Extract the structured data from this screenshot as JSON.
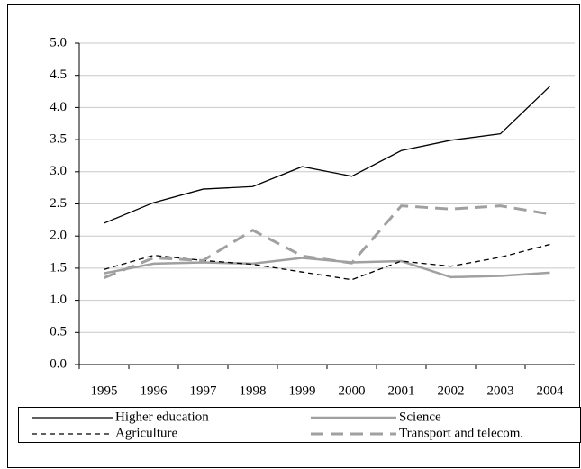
{
  "chart_data": {
    "type": "line",
    "categories": [
      "1995",
      "1996",
      "1997",
      "1998",
      "1999",
      "2000",
      "2001",
      "2002",
      "2003",
      "2004"
    ],
    "series": [
      {
        "name": "Higher education",
        "color": "#000000",
        "line_style": "solid",
        "values": [
          2.2,
          2.52,
          2.73,
          2.77,
          3.08,
          2.93,
          3.33,
          3.49,
          3.59,
          4.33
        ]
      },
      {
        "name": "Science",
        "color": "#a0a0a0",
        "line_style": "solid-thick",
        "values": [
          1.42,
          1.57,
          1.59,
          1.57,
          1.66,
          1.59,
          1.61,
          1.36,
          1.38,
          1.43
        ]
      },
      {
        "name": "Agriculture",
        "color": "#000000",
        "line_style": "dashed",
        "values": [
          1.48,
          1.7,
          1.62,
          1.56,
          1.44,
          1.32,
          1.61,
          1.53,
          1.67,
          1.87
        ]
      },
      {
        "name": "Transport and telecom.",
        "color": "#a0a0a0",
        "line_style": "dashed-thick",
        "values": [
          1.35,
          1.66,
          1.62,
          2.09,
          1.69,
          1.58,
          2.47,
          2.42,
          2.47,
          2.34
        ]
      }
    ],
    "ylim": [
      0,
      5
    ],
    "yticks": [
      {
        "value": 0,
        "label": "0.0"
      },
      0.5,
      {
        "value": 1,
        "label": "1.0"
      },
      1.5,
      {
        "value": 2,
        "label": "2.0"
      },
      2.5,
      {
        "value": 3,
        "label": "3.0"
      },
      3.5,
      {
        "value": 4,
        "label": "4.0"
      },
      4.5,
      {
        "value": 5,
        "label": "5.0"
      }
    ],
    "grid": true
  }
}
